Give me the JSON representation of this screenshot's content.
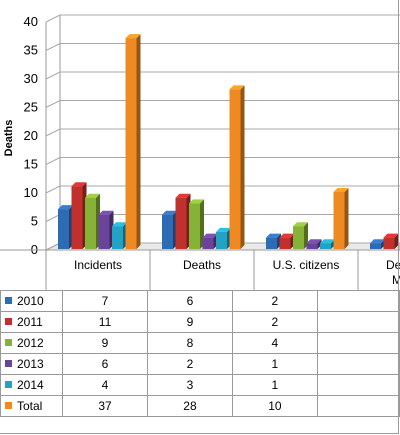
{
  "chart_data": {
    "type": "bar",
    "ylabel": "Deaths",
    "ylim": [
      0,
      40
    ],
    "yticks": [
      0,
      5,
      10,
      15,
      20,
      25,
      30,
      35,
      40
    ],
    "categories": [
      "Incidents",
      "Deaths",
      "U.S. citizens",
      "De... M..."
    ],
    "visible_category_labels": [
      "Incidents",
      "Deaths",
      "U.S. citizens",
      "De",
      "M"
    ],
    "grid": true,
    "legend": "table-left",
    "series": [
      {
        "name": "2010",
        "color": "#2e6bb5",
        "values": [
          7,
          6,
          2,
          1
        ]
      },
      {
        "name": "2011",
        "color": "#c0302c",
        "values": [
          11,
          9,
          2,
          2
        ]
      },
      {
        "name": "2012",
        "color": "#86b238",
        "values": [
          9,
          8,
          4,
          null
        ]
      },
      {
        "name": "2013",
        "color": "#6a449a",
        "values": [
          6,
          2,
          1,
          null
        ]
      },
      {
        "name": "2014",
        "color": "#22a3c4",
        "values": [
          4,
          3,
          1,
          null
        ]
      },
      {
        "name": "Total",
        "color": "#ef8a22",
        "values": [
          37,
          28,
          10,
          null
        ]
      }
    ]
  }
}
